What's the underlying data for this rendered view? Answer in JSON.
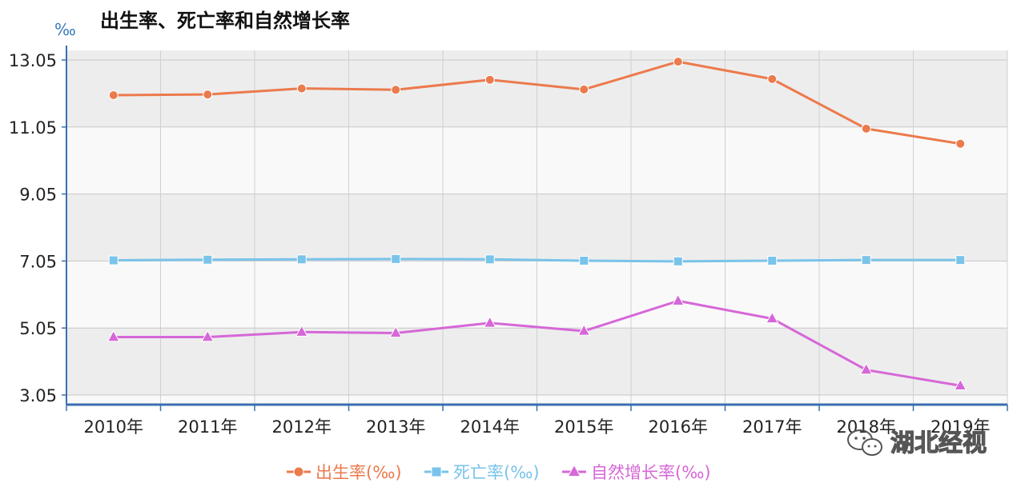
{
  "chart_data": {
    "type": "line",
    "title": "出生率、死亡率和自然增长率",
    "ylabel": "‰",
    "xlabel": "",
    "categories": [
      "2010年",
      "2011年",
      "2012年",
      "2013年",
      "2014年",
      "2015年",
      "2016年",
      "2017年",
      "2018年",
      "2019年"
    ],
    "y_ticks": [
      "13.05",
      "11.05",
      "9.05",
      "7.05",
      "5.05",
      "3.05"
    ],
    "ylim": [
      3.05,
      13.05
    ],
    "grid": true,
    "legend_position": "bottom",
    "series": [
      {
        "name": "出生率(‰)",
        "color": "#ec7a4c",
        "marker": "circle",
        "values": [
          12.0,
          12.02,
          12.2,
          12.16,
          12.46,
          12.17,
          13.0,
          12.48,
          11.0,
          10.55
        ]
      },
      {
        "name": "死亡率(‰)",
        "color": "#7ac3ea",
        "marker": "square",
        "values": [
          7.07,
          7.09,
          7.1,
          7.11,
          7.1,
          7.06,
          7.04,
          7.06,
          7.08,
          7.08
        ]
      },
      {
        "name": "自然增长率(‰)",
        "color": "#d667d8",
        "marker": "triangle",
        "values": [
          4.78,
          4.78,
          4.93,
          4.9,
          5.2,
          4.96,
          5.86,
          5.33,
          3.8,
          3.33
        ]
      }
    ]
  },
  "watermark": {
    "text": "湖北经视"
  }
}
